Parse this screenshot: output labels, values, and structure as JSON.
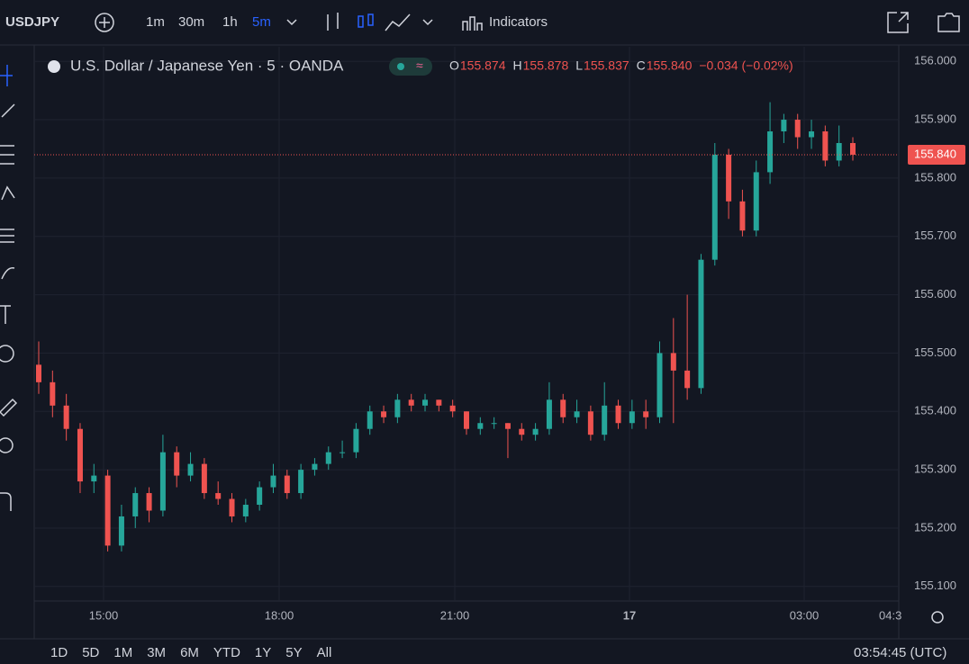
{
  "toolbar": {
    "symbol": "USDJPY",
    "intervals": [
      "1m",
      "30m",
      "1h",
      "5m"
    ],
    "indicators": "Indicators"
  },
  "legend": {
    "name": "U.S. Dollar / Japanese Yen · 5 · OANDA",
    "o_label": "O",
    "o": "155.874",
    "h_label": "H",
    "h": "155.878",
    "l_label": "L",
    "l": "155.837",
    "c_label": "C",
    "c": "155.840",
    "change": "−0.034 (−0.02%)"
  },
  "time_labels": [
    "15:00",
    "18:00",
    "21:00",
    "17",
    "03:00",
    "04:3"
  ],
  "ranges": [
    "1D",
    "5D",
    "1M",
    "3M",
    "6M",
    "YTD",
    "1Y",
    "5Y",
    "All"
  ],
  "clock": "03:54:45 (UTC)",
  "chart_data": {
    "type": "candlestick",
    "up_color": "#26a69a",
    "down_color": "#ef5350",
    "ylim": [
      155.075,
      156.025
    ],
    "yticks": [
      {
        "value": 155.1,
        "label": "155.100"
      },
      {
        "value": 155.2,
        "label": "155.200"
      },
      {
        "value": 155.3,
        "label": "155.300"
      },
      {
        "value": 155.4,
        "label": "155.400"
      },
      {
        "value": 155.5,
        "label": "155.500"
      },
      {
        "value": 155.6,
        "label": "155.600"
      },
      {
        "value": 155.7,
        "label": "155.700"
      },
      {
        "value": 155.8,
        "label": "155.800"
      },
      {
        "value": 155.9,
        "label": "155.900"
      },
      {
        "value": 156.0,
        "label": "156.000"
      }
    ],
    "grid": true,
    "last_price": {
      "value": 155.84,
      "label": "155.840"
    },
    "open": [
      155.48,
      155.45,
      155.41,
      155.37,
      155.28,
      155.29,
      155.17,
      155.22,
      155.26,
      155.23,
      155.33,
      155.29,
      155.31,
      155.26,
      155.25,
      155.22,
      155.24,
      155.27,
      155.29,
      155.26,
      155.3,
      155.31,
      155.33,
      155.33,
      155.37,
      155.4,
      155.39,
      155.42,
      155.41,
      155.42,
      155.41,
      155.4,
      155.37,
      155.38,
      155.38,
      155.37,
      155.36,
      155.37,
      155.42,
      155.39,
      155.4,
      155.36,
      155.41,
      155.38,
      155.4,
      155.39,
      155.5,
      155.47,
      155.44,
      155.66,
      155.84,
      155.76,
      155.71,
      155.81,
      155.88,
      155.9,
      155.87,
      155.88,
      155.83,
      155.86
    ],
    "high": [
      155.52,
      155.47,
      155.43,
      155.38,
      155.31,
      155.3,
      155.24,
      155.27,
      155.27,
      155.36,
      155.34,
      155.33,
      155.32,
      155.28,
      155.26,
      155.25,
      155.28,
      155.31,
      155.3,
      155.31,
      155.32,
      155.34,
      155.35,
      155.38,
      155.41,
      155.41,
      155.43,
      155.43,
      155.43,
      155.42,
      155.42,
      155.4,
      155.39,
      155.39,
      155.38,
      155.38,
      155.38,
      155.45,
      155.43,
      155.42,
      155.41,
      155.45,
      155.42,
      155.42,
      155.42,
      155.52,
      155.56,
      155.6,
      155.67,
      155.86,
      155.85,
      155.78,
      155.83,
      155.93,
      155.91,
      155.91,
      155.9,
      155.89,
      155.89,
      155.87
    ],
    "low": [
      155.43,
      155.39,
      155.35,
      155.26,
      155.26,
      155.16,
      155.16,
      155.2,
      155.21,
      155.22,
      155.27,
      155.28,
      155.25,
      155.24,
      155.21,
      155.21,
      155.23,
      155.26,
      155.25,
      155.25,
      155.29,
      155.3,
      155.32,
      155.32,
      155.36,
      155.38,
      155.38,
      155.4,
      155.4,
      155.4,
      155.39,
      155.36,
      155.36,
      155.37,
      155.32,
      155.35,
      155.35,
      155.36,
      155.38,
      155.38,
      155.35,
      155.35,
      155.37,
      155.37,
      155.37,
      155.38,
      155.38,
      155.42,
      155.43,
      155.65,
      155.73,
      155.7,
      155.7,
      155.79,
      155.86,
      155.85,
      155.85,
      155.82,
      155.82,
      155.83
    ],
    "close": [
      155.45,
      155.41,
      155.37,
      155.28,
      155.29,
      155.17,
      155.22,
      155.26,
      155.23,
      155.33,
      155.29,
      155.31,
      155.26,
      155.25,
      155.22,
      155.24,
      155.27,
      155.29,
      155.26,
      155.3,
      155.31,
      155.33,
      155.33,
      155.37,
      155.4,
      155.39,
      155.42,
      155.41,
      155.42,
      155.41,
      155.4,
      155.37,
      155.38,
      155.38,
      155.37,
      155.36,
      155.37,
      155.42,
      155.39,
      155.4,
      155.36,
      155.41,
      155.38,
      155.4,
      155.39,
      155.5,
      155.47,
      155.44,
      155.66,
      155.84,
      155.76,
      155.71,
      155.81,
      155.88,
      155.9,
      155.87,
      155.88,
      155.83,
      155.86,
      155.84
    ]
  }
}
